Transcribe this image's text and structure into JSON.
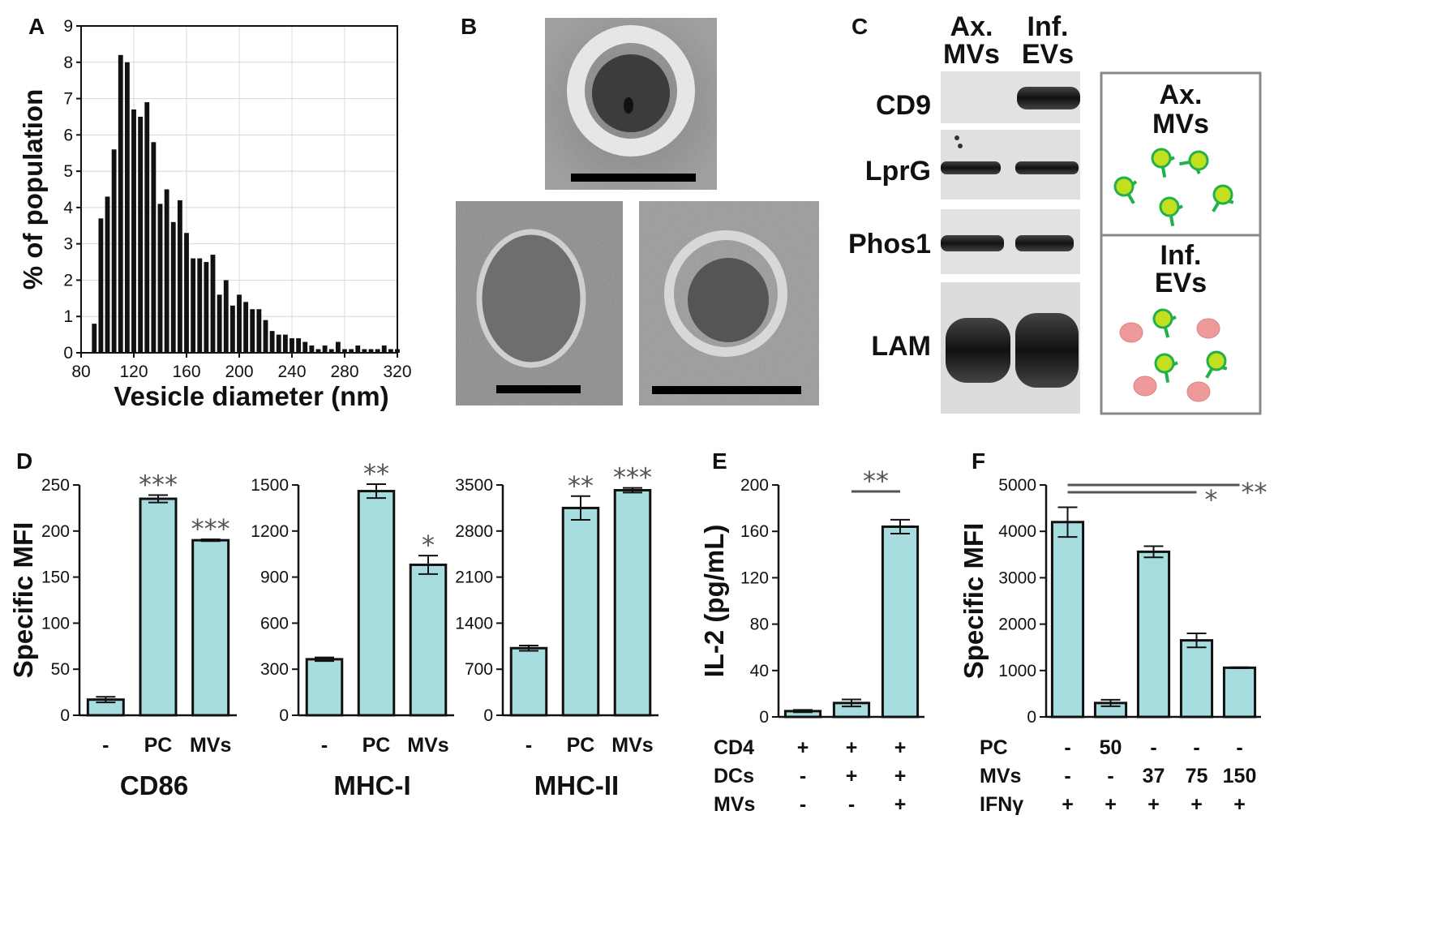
{
  "panels": {
    "A": "A",
    "B": "B",
    "C": "C",
    "D": "D",
    "E": "E",
    "F": "F"
  },
  "chart_data": [
    {
      "id": "A",
      "type": "bar",
      "xlabel": "Vesicle diameter (nm)",
      "ylabel": "% of population",
      "xlim": [
        80,
        320
      ],
      "ylim": [
        0,
        9
      ],
      "xticks": [
        "80",
        "120",
        "160",
        "200",
        "240",
        "280",
        "320"
      ],
      "yticks": [
        "0",
        "1",
        "2",
        "3",
        "4",
        "5",
        "6",
        "7",
        "8",
        "9"
      ],
      "x": [
        90,
        95,
        100,
        105,
        110,
        115,
        120,
        125,
        130,
        135,
        140,
        145,
        150,
        155,
        160,
        165,
        170,
        175,
        180,
        185,
        190,
        195,
        200,
        205,
        210,
        215,
        220,
        225,
        230,
        235,
        240,
        245,
        250,
        255,
        260,
        265,
        270,
        275,
        280,
        285,
        290,
        295,
        300,
        305,
        310,
        315,
        320
      ],
      "values": [
        0.8,
        3.7,
        4.3,
        5.6,
        8.2,
        8.0,
        6.7,
        6.5,
        6.9,
        5.8,
        4.1,
        4.5,
        3.6,
        4.2,
        3.3,
        2.6,
        2.6,
        2.5,
        2.7,
        1.6,
        2.0,
        1.3,
        1.6,
        1.4,
        1.2,
        1.2,
        0.9,
        0.6,
        0.5,
        0.5,
        0.4,
        0.4,
        0.3,
        0.2,
        0.1,
        0.2,
        0.1,
        0.3,
        0.1,
        0.1,
        0.2,
        0.1,
        0.1,
        0.1,
        0.2,
        0.1,
        0.1
      ]
    },
    {
      "id": "D1",
      "type": "bar",
      "ylabel": "Specific MFI",
      "xlabel": "CD86",
      "ylim": [
        0,
        250
      ],
      "yticks": [
        "0",
        "50",
        "100",
        "150",
        "200",
        "250"
      ],
      "categories": [
        "-",
        "PC",
        "MVs"
      ],
      "values": [
        17,
        235,
        190
      ],
      "errors": [
        3,
        4,
        1
      ],
      "annotations": [
        "",
        "***",
        "***"
      ]
    },
    {
      "id": "D2",
      "type": "bar",
      "xlabel": "MHC-I",
      "ylim": [
        0,
        1500
      ],
      "yticks": [
        "0",
        "300",
        "600",
        "900",
        "1200",
        "1500"
      ],
      "categories": [
        "-",
        "PC",
        "MVs"
      ],
      "values": [
        365,
        1460,
        980
      ],
      "errors": [
        12,
        45,
        60
      ],
      "annotations": [
        "",
        "**",
        "*"
      ]
    },
    {
      "id": "D3",
      "type": "bar",
      "xlabel": "MHC-II",
      "ylim": [
        0,
        3500
      ],
      "yticks": [
        "0",
        "700",
        "1400",
        "2100",
        "2800",
        "3500"
      ],
      "categories": [
        "-",
        "PC",
        "MVs"
      ],
      "values": [
        1020,
        3150,
        3420
      ],
      "errors": [
        40,
        180,
        35
      ],
      "annotations": [
        "",
        "**",
        "***"
      ]
    },
    {
      "id": "E",
      "type": "bar",
      "ylabel": "IL-2 (pg/mL)",
      "ylim": [
        0,
        200
      ],
      "yticks": [
        "0",
        "40",
        "80",
        "120",
        "160",
        "200"
      ],
      "values": [
        5,
        12,
        164
      ],
      "errors": [
        1,
        3,
        6
      ],
      "conditions": [
        {
          "name": "CD4",
          "marks": [
            "+",
            "+",
            "+"
          ]
        },
        {
          "name": "DCs",
          "marks": [
            "-",
            "+",
            "+"
          ]
        },
        {
          "name": "MVs",
          "marks": [
            "-",
            "-",
            "+"
          ]
        }
      ],
      "comparisons": [
        {
          "from": 1,
          "to": 2,
          "label": "**"
        }
      ]
    },
    {
      "id": "F",
      "type": "bar",
      "ylabel": "Specific MFI",
      "ylim": [
        0,
        5000
      ],
      "yticks": [
        "0",
        "1000",
        "2000",
        "3000",
        "4000",
        "5000"
      ],
      "values": [
        4200,
        300,
        3560,
        1650,
        1060
      ],
      "errors": [
        320,
        70,
        120,
        150,
        10
      ],
      "conditions": [
        {
          "name": "PC",
          "marks": [
            "-",
            "50",
            "-",
            "-",
            "-"
          ]
        },
        {
          "name": "MVs",
          "marks": [
            "-",
            "-",
            "37",
            "75",
            "150"
          ]
        },
        {
          "name": "IFNγ",
          "marks": [
            "+",
            "+",
            "+",
            "+",
            "+"
          ]
        }
      ],
      "comparisons": [
        {
          "from": 0,
          "to": 3,
          "label": "*"
        },
        {
          "from": 0,
          "to": 4,
          "label": "**"
        }
      ]
    }
  ],
  "blot": {
    "columns": [
      "Ax.\nMVs",
      "Inf.\nEVs"
    ],
    "rows": [
      "CD9",
      "LprG",
      "Phos1",
      "LAM"
    ]
  },
  "schematic": {
    "top": "Ax.\nMVs",
    "bottom": "Inf.\nEVs"
  },
  "colors": {
    "bar_fill": "#A8DDE0",
    "bar_stroke": "#111111",
    "histogram": "#111111",
    "star": "#555555",
    "vesicle_green": "#C2E020",
    "vesicle_stroke": "#22B04A",
    "host_vesicle": "#EE9A9A"
  }
}
